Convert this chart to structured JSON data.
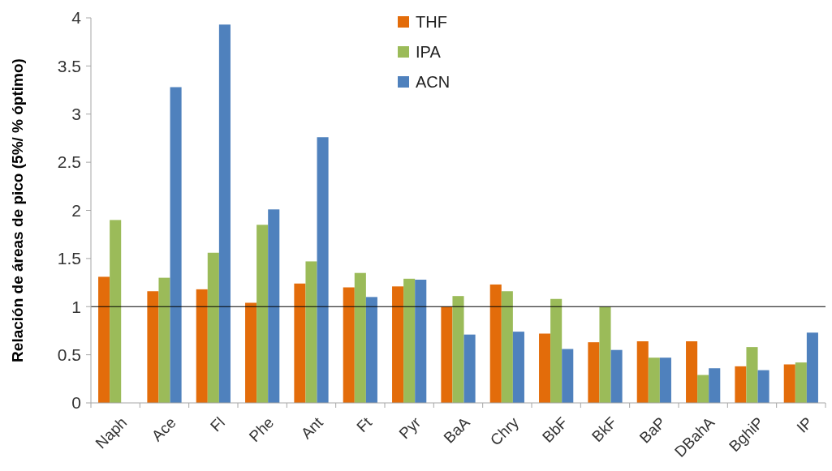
{
  "chart_data": {
    "type": "bar",
    "ylabel": "Relación de áreas de pico (5%/ % óptimo)",
    "categories": [
      "Naph",
      "Ace",
      "Fl",
      "Phe",
      "Ant",
      "Ft",
      "Pyr",
      "BaA",
      "Chry",
      "BbF",
      "BkF",
      "BaP",
      "DBahA",
      "BghiP",
      "IP"
    ],
    "series": [
      {
        "name": "THF",
        "color": "#e36c0a",
        "values": [
          1.31,
          1.16,
          1.18,
          1.04,
          1.24,
          1.2,
          1.21,
          1.0,
          1.23,
          0.72,
          0.63,
          0.64,
          0.64,
          0.38,
          0.4
        ]
      },
      {
        "name": "IPA",
        "color": "#9bbb59",
        "values": [
          1.9,
          1.3,
          1.56,
          1.85,
          1.47,
          1.35,
          1.29,
          1.11,
          1.16,
          1.08,
          1.0,
          0.47,
          0.29,
          0.58,
          0.42
        ]
      },
      {
        "name": "ACN",
        "color": "#4f81bd",
        "values": [
          null,
          3.28,
          3.93,
          2.01,
          2.76,
          1.1,
          1.28,
          0.71,
          0.74,
          0.56,
          0.55,
          0.47,
          0.36,
          0.34,
          0.73
        ]
      }
    ],
    "ylim": [
      0,
      4
    ],
    "yticks": [
      0,
      0.5,
      1,
      1.5,
      2,
      2.5,
      3,
      3.5,
      4
    ],
    "ref_lines": [
      {
        "axis": "y",
        "value": 1,
        "color": "#000000"
      }
    ],
    "legend": "top",
    "grid": false
  }
}
